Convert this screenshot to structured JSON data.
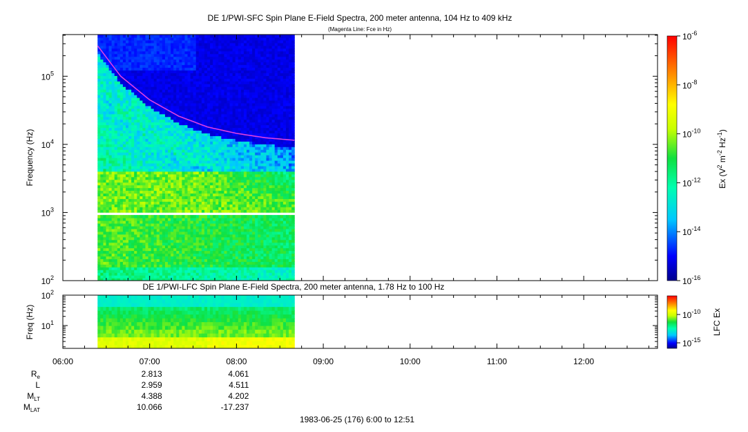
{
  "title": "DE 1/PWI-SFC  Spin Plane E-Field Spectra, 200 meter antenna, 104 Hz to 409 kHz",
  "subtitle": "(Magenta Line: Fce in Hz)",
  "lower_title": "DE 1/PWI-LFC  Spin Plane E-Field Spectra, 200 meter antenna, 1.78 Hz to 100 Hz",
  "footer": "1983-06-25 (176) 6:00 to 12:51",
  "chart_data": [
    {
      "type": "heatmap",
      "title": "DE 1/PWI-SFC  Spin Plane E-Field Spectra, 200 meter antenna, 104 Hz to 409 kHz",
      "subtitle": "(Magenta Line: Fce in Hz)",
      "ylabel": "Frequency (Hz)",
      "yscale": "log",
      "ylim": [
        100,
        409000
      ],
      "yticks": [
        {
          "value": 100,
          "m": "10",
          "e": "2"
        },
        {
          "value": 1000,
          "m": "10",
          "e": "3"
        },
        {
          "value": 10000,
          "m": "10",
          "e": "4"
        },
        {
          "value": 100000,
          "m": "10",
          "e": "5"
        }
      ],
      "xlim": [
        "06:00",
        "12:51"
      ],
      "data_span": [
        "06:24",
        "08:40"
      ],
      "gap_hz": [
        900,
        1050
      ],
      "colorbar": {
        "label_base": "Ex (V",
        "label_tail": " m",
        "label_tail2": " Hz",
        "label_close": ")",
        "label_exp1": "2",
        "label_exp2": "-2",
        "label_exp3": "-1",
        "scale": "log",
        "range": [
          1e-16,
          1e-06
        ],
        "ticks": [
          {
            "m": "10",
            "e": "-6"
          },
          {
            "m": "10",
            "e": "-8"
          },
          {
            "m": "10",
            "e": "-10"
          },
          {
            "m": "10",
            "e": "-12"
          },
          {
            "m": "10",
            "e": "-14"
          },
          {
            "m": "10",
            "e": "-16"
          }
        ]
      },
      "series": [
        {
          "name": "Fce",
          "color": "#e040e0",
          "x": [
            "06:24",
            "06:40",
            "07:00",
            "07:20",
            "07:40",
            "08:00",
            "08:20",
            "08:40"
          ],
          "y": [
            280000,
            100000,
            45000,
            26000,
            18000,
            14500,
            12500,
            11500
          ]
        }
      ]
    },
    {
      "type": "heatmap",
      "title": "DE 1/PWI-LFC  Spin Plane E-Field Spectra, 200 meter antenna, 1.78 Hz to 100 Hz",
      "ylabel": "Freq (Hz)",
      "yscale": "log",
      "ylim": [
        1.78,
        100
      ],
      "yticks": [
        {
          "value": 10,
          "m": "10",
          "e": "1"
        },
        {
          "value": 100,
          "m": "10",
          "e": "2"
        }
      ],
      "data_span": [
        "06:24",
        "08:40"
      ],
      "colorbar": {
        "label": "LFC Ex",
        "ticks": [
          {
            "m": "10",
            "e": "-10"
          },
          {
            "m": "10",
            "e": "-15"
          }
        ]
      }
    }
  ],
  "xaxis": {
    "ticks": [
      "06:00",
      "07:00",
      "08:00",
      "09:00",
      "10:00",
      "11:00",
      "12:00"
    ]
  },
  "ephemeris": [
    {
      "label": "R",
      "sub": "e",
      "values": [
        "2.813",
        "4.061"
      ]
    },
    {
      "label": "L",
      "sub": "",
      "values": [
        "2.959",
        "4.511"
      ]
    },
    {
      "label": "M",
      "sub": "LT",
      "values": [
        "4.388",
        "4.202"
      ]
    },
    {
      "label": "M",
      "sub": "LAT",
      "values": [
        "10.066",
        "-17.237"
      ]
    }
  ]
}
